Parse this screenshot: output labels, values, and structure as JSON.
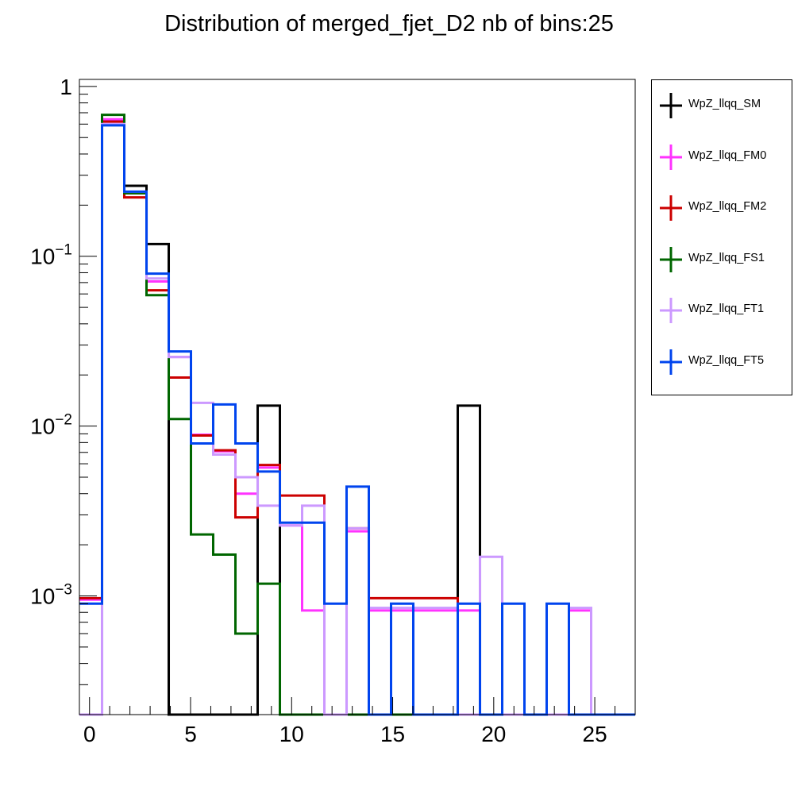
{
  "chart_data": {
    "type": "step-histogram",
    "title": "Distribution of merged_fjet_D2 nb of bins:25",
    "xlabel": "",
    "ylabel": "",
    "xlim": [
      -0.5,
      27
    ],
    "ylim": [
      0.0002,
      1.1
    ],
    "yscale": "log",
    "grid": false,
    "legend_position": "right-outside",
    "bin_edges": [
      -0.5,
      0.62,
      1.72,
      2.82,
      3.92,
      5.02,
      6.12,
      7.22,
      8.32,
      9.42,
      10.52,
      11.62,
      12.72,
      13.82,
      14.92,
      16.02,
      17.12,
      18.22,
      19.32,
      20.42,
      21.52,
      22.62,
      23.72,
      24.82,
      25.92,
      27.0
    ],
    "xticks": [
      0,
      5,
      10,
      15,
      20,
      25
    ],
    "yticks": [
      {
        "value": 1,
        "mantissa": "1",
        "exponent": ""
      },
      {
        "value": 0.1,
        "mantissa": "10",
        "exponent": "−1"
      },
      {
        "value": 0.01,
        "mantissa": "10",
        "exponent": "−2"
      },
      {
        "value": 0.001,
        "mantissa": "10",
        "exponent": "−3"
      }
    ],
    "series": [
      {
        "name": "WpZ_llqq_SM",
        "color": "#000000",
        "values": [
          0,
          0.63,
          0.26,
          0.118,
          0,
          0,
          0,
          0,
          0.0132,
          0,
          0,
          0,
          0,
          0,
          0,
          0,
          0,
          0.0132,
          0,
          0,
          0,
          0,
          0,
          0,
          0
        ]
      },
      {
        "name": "WpZ_llqq_FM0",
        "color": "#ff33ff",
        "values": [
          0.00095,
          0.64,
          0.235,
          0.071,
          0.0255,
          0.0089,
          0.0071,
          0.004,
          0.0057,
          0.0026,
          0.00082,
          0,
          0.0024,
          0.00082,
          0.00082,
          0.00082,
          0.00082,
          0.00082,
          0,
          0,
          0,
          0,
          0.00082,
          0,
          0
        ]
      },
      {
        "name": "WpZ_llqq_FM2",
        "color": "#cc0000",
        "values": [
          0.00097,
          0.62,
          0.222,
          0.063,
          0.0193,
          0.0088,
          0.0072,
          0.0029,
          0.0059,
          0.0039,
          0.0039,
          0,
          0.0025,
          0.00097,
          0.00097,
          0.00097,
          0.00097,
          0,
          0,
          0,
          0,
          0,
          0,
          0,
          0
        ]
      },
      {
        "name": "WpZ_llqq_FS1",
        "color": "#006600",
        "values": [
          0,
          0.68,
          0.235,
          0.059,
          0.011,
          0.0023,
          0.00175,
          0.0006,
          0.00118,
          0,
          0,
          0,
          0,
          0,
          0,
          0,
          0,
          0,
          0,
          0,
          0,
          0,
          0,
          0,
          0
        ]
      },
      {
        "name": "WpZ_llqq_FT1",
        "color": "#cc99ff",
        "values": [
          0,
          0.6,
          0.24,
          0.074,
          0.0255,
          0.0137,
          0.0068,
          0.005,
          0.0034,
          0.0026,
          0.0034,
          0,
          0.0025,
          0.00085,
          0.00085,
          0.00085,
          0.00085,
          0,
          0.0017,
          0,
          0,
          0,
          0.00085,
          0,
          0
        ]
      },
      {
        "name": "WpZ_llqq_FT5",
        "color": "#0044ee",
        "values": [
          0.0009,
          0.59,
          0.24,
          0.079,
          0.0275,
          0.0079,
          0.0134,
          0.0079,
          0.0054,
          0.0027,
          0.0027,
          0.0009,
          0.0044,
          0,
          0.0009,
          0,
          0,
          0.0009,
          0,
          0.0009,
          0,
          0.0009,
          0,
          0,
          0
        ]
      }
    ]
  }
}
